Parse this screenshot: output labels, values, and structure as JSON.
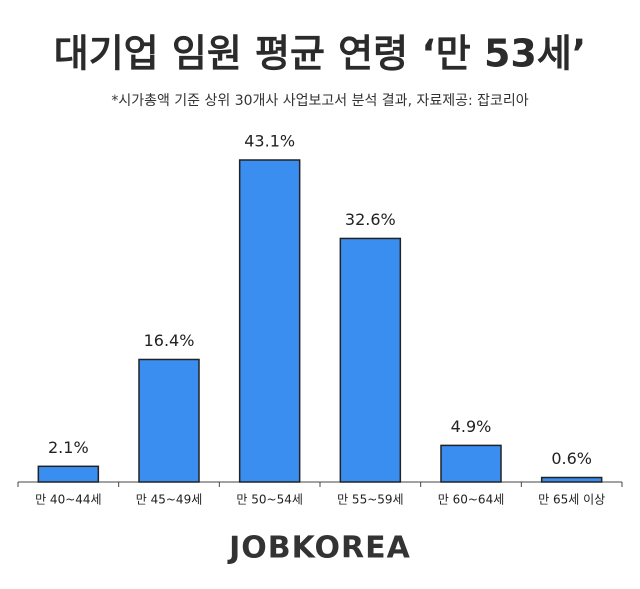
{
  "chart_data": {
    "type": "bar",
    "title": "대기업 임원 평균 연령 ‘만 53세’",
    "subtitle": "*시가총액 기준 상위 30개사 사업보고서 분석 결과, 자료제공: 잡코리아",
    "categories": [
      "만 40~44세",
      "만 45~49세",
      "만 50~54세",
      "만 55~59세",
      "만 60~64세",
      "만 65세 이상"
    ],
    "values": [
      2.1,
      16.4,
      43.1,
      32.6,
      4.9,
      0.6
    ],
    "value_labels": [
      "2.1%",
      "16.4%",
      "43.1%",
      "32.6%",
      "4.9%",
      "0.6%"
    ],
    "color": "#3a8ef0",
    "brand": "JOBKOREA"
  }
}
